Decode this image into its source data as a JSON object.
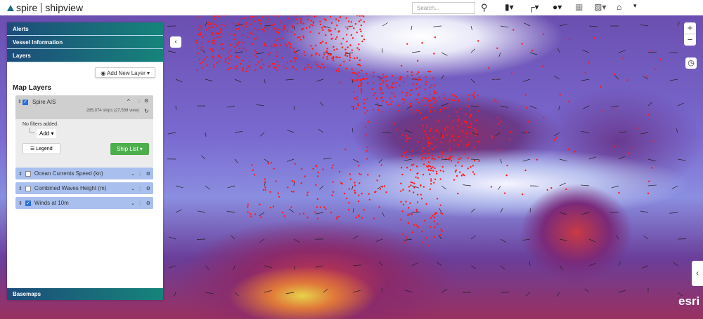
{
  "app": {
    "brand_left": "spire",
    "brand_right": "shipview"
  },
  "toolbar": {
    "search_placeholder": "Search...",
    "icons": [
      "search-icon",
      "bookmark-icon",
      "ruler-icon",
      "map-marker-icon",
      "grid-icon",
      "world-map-icon",
      "home-icon",
      "more-icon"
    ]
  },
  "sidebar": {
    "sections": [
      "Alerts",
      "Vessel Information",
      "Layers"
    ],
    "add_new_layer": "Add New Layer",
    "map_layers_title": "Map Layers",
    "ais": {
      "name": "Spire AIS",
      "checked": true,
      "count": "285,074 ships (27,599 view)",
      "no_filters": "No filters added.",
      "add": "Add",
      "legend": "Legend",
      "ship_list": "Ship List"
    },
    "layers": [
      {
        "name": "Ocean Currents Speed (kn)",
        "checked": false
      },
      {
        "name": "Combined Waves Height (m)",
        "checked": false
      },
      {
        "name": "Winds at 10m",
        "checked": true
      }
    ],
    "basemaps": "Basemaps"
  },
  "map": {
    "zoom_in": "+",
    "zoom_out": "−",
    "attribution": "esri",
    "colors": {
      "ships": "#ff1a1a",
      "accent": "#16847a",
      "ship_list": "#4cae4c"
    }
  }
}
